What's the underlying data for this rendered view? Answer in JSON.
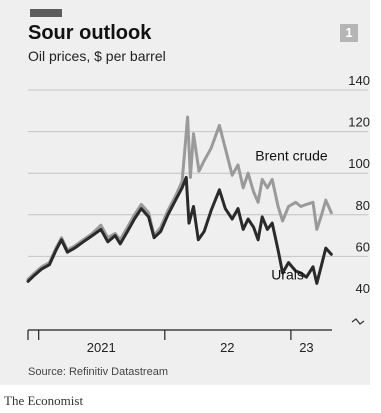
{
  "header": {
    "title": "Sour outlook",
    "subtitle": "Oil prices, $ per barrel",
    "chart_number": "1"
  },
  "footer": {
    "source": "Source: Refinitiv Datastream",
    "brand": "The Economist"
  },
  "colors": {
    "brent": "#9a9a9a",
    "urals": "#2a2a2a",
    "grid": "#c4c4c4",
    "panel": "#efefef"
  },
  "chart_data": {
    "type": "line",
    "title": "Sour outlook",
    "subtitle": "Oil prices, $ per barrel",
    "ylim": [
      40,
      140
    ],
    "yticks": [
      40,
      60,
      80,
      100,
      120,
      140
    ],
    "y_axis_break": true,
    "x_range": [
      "2020-12-01",
      "2023-04-30"
    ],
    "x_year_ticks": [
      "2021-01-01",
      "2022-01-01",
      "2023-01-01"
    ],
    "x_year_labels": [
      {
        "label": "2021",
        "date": "2021-07-01"
      },
      {
        "label": "22",
        "date": "2022-07-01"
      },
      {
        "label": "23",
        "date": "2023-02-15"
      }
    ],
    "grid": true,
    "series": [
      {
        "name": "Brent crude",
        "label_date": "2022-09-20",
        "label_value": 106,
        "points": [
          [
            "2020-12-01",
            49
          ],
          [
            "2020-12-20",
            52
          ],
          [
            "2021-01-10",
            55
          ],
          [
            "2021-02-01",
            57
          ],
          [
            "2021-02-20",
            64
          ],
          [
            "2021-03-08",
            69
          ],
          [
            "2021-03-25",
            63
          ],
          [
            "2021-04-15",
            65
          ],
          [
            "2021-05-10",
            68
          ],
          [
            "2021-06-05",
            71
          ],
          [
            "2021-06-30",
            75
          ],
          [
            "2021-07-20",
            69
          ],
          [
            "2021-08-10",
            71
          ],
          [
            "2021-08-25",
            68
          ],
          [
            "2021-09-15",
            74
          ],
          [
            "2021-10-05",
            80
          ],
          [
            "2021-10-25",
            85
          ],
          [
            "2021-11-15",
            81
          ],
          [
            "2021-12-01",
            70
          ],
          [
            "2021-12-20",
            74
          ],
          [
            "2022-01-10",
            82
          ],
          [
            "2022-02-01",
            89
          ],
          [
            "2022-02-20",
            96
          ],
          [
            "2022-03-08",
            127
          ],
          [
            "2022-03-16",
            98
          ],
          [
            "2022-03-25",
            119
          ],
          [
            "2022-04-10",
            101
          ],
          [
            "2022-04-25",
            106
          ],
          [
            "2022-05-15",
            112
          ],
          [
            "2022-06-08",
            123
          ],
          [
            "2022-06-25",
            112
          ],
          [
            "2022-07-15",
            99
          ],
          [
            "2022-08-01",
            104
          ],
          [
            "2022-08-16",
            93
          ],
          [
            "2022-08-30",
            100
          ],
          [
            "2022-09-15",
            91
          ],
          [
            "2022-09-28",
            86
          ],
          [
            "2022-10-10",
            97
          ],
          [
            "2022-10-25",
            93
          ],
          [
            "2022-11-08",
            97
          ],
          [
            "2022-11-25",
            84
          ],
          [
            "2022-12-08",
            77
          ],
          [
            "2022-12-25",
            84
          ],
          [
            "2023-01-15",
            86
          ],
          [
            "2023-01-30",
            84
          ],
          [
            "2023-02-15",
            85
          ],
          [
            "2023-03-06",
            86
          ],
          [
            "2023-03-17",
            73
          ],
          [
            "2023-03-31",
            80
          ],
          [
            "2023-04-12",
            87
          ],
          [
            "2023-04-28",
            81
          ]
        ]
      },
      {
        "name": "Urals",
        "label_date": "2022-11-05",
        "label_value": 49,
        "points": [
          [
            "2020-12-01",
            48
          ],
          [
            "2020-12-20",
            51
          ],
          [
            "2021-01-10",
            54
          ],
          [
            "2021-02-01",
            56
          ],
          [
            "2021-02-20",
            63
          ],
          [
            "2021-03-08",
            68
          ],
          [
            "2021-03-25",
            62
          ],
          [
            "2021-04-15",
            64
          ],
          [
            "2021-05-10",
            67
          ],
          [
            "2021-06-05",
            70
          ],
          [
            "2021-06-30",
            73
          ],
          [
            "2021-07-20",
            67
          ],
          [
            "2021-08-10",
            70
          ],
          [
            "2021-08-25",
            66
          ],
          [
            "2021-09-15",
            72
          ],
          [
            "2021-10-05",
            78
          ],
          [
            "2021-10-25",
            83
          ],
          [
            "2021-11-15",
            79
          ],
          [
            "2021-12-01",
            69
          ],
          [
            "2021-12-20",
            72
          ],
          [
            "2022-01-10",
            80
          ],
          [
            "2022-02-01",
            87
          ],
          [
            "2022-02-20",
            93
          ],
          [
            "2022-03-04",
            98
          ],
          [
            "2022-03-12",
            76
          ],
          [
            "2022-03-25",
            84
          ],
          [
            "2022-04-08",
            68
          ],
          [
            "2022-04-25",
            72
          ],
          [
            "2022-05-15",
            82
          ],
          [
            "2022-06-08",
            92
          ],
          [
            "2022-06-25",
            83
          ],
          [
            "2022-07-15",
            78
          ],
          [
            "2022-08-01",
            83
          ],
          [
            "2022-08-16",
            73
          ],
          [
            "2022-08-30",
            78
          ],
          [
            "2022-09-15",
            74
          ],
          [
            "2022-09-28",
            68
          ],
          [
            "2022-10-10",
            79
          ],
          [
            "2022-10-25",
            73
          ],
          [
            "2022-11-08",
            76
          ],
          [
            "2022-11-25",
            63
          ],
          [
            "2022-12-08",
            52
          ],
          [
            "2022-12-25",
            57
          ],
          [
            "2023-01-15",
            53
          ],
          [
            "2023-01-30",
            52
          ],
          [
            "2023-02-15",
            50
          ],
          [
            "2023-03-06",
            55
          ],
          [
            "2023-03-17",
            47
          ],
          [
            "2023-03-31",
            56
          ],
          [
            "2023-04-12",
            64
          ],
          [
            "2023-04-28",
            61
          ]
        ]
      }
    ]
  }
}
